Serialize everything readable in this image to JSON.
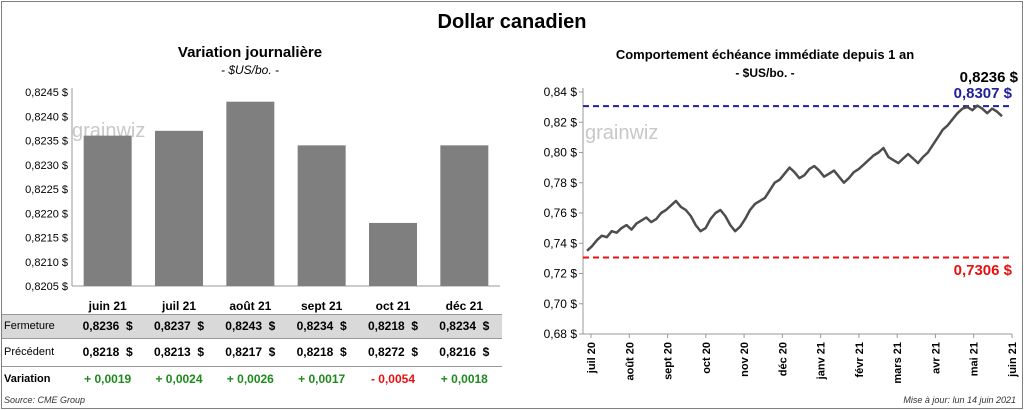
{
  "title": "Dollar canadien",
  "left_chart": {
    "title": "Variation  journalière",
    "subtitle": "- $US/bo. -",
    "watermark": "grainwiz"
  },
  "right_chart": {
    "title": "Comportement échéance immédiate depuis 1 an",
    "subtitle": "- $US/bo. -",
    "watermark": "grainwiz",
    "last_label": "0,8236 $",
    "high_label": "0,8307 $",
    "low_label": "0,7306 $"
  },
  "table": {
    "rows": [
      {
        "label": "Fermeture",
        "values": [
          "0,8236  $",
          "0,8237  $",
          "0,8243  $",
          "0,8234  $",
          "0,8218  $",
          "0,8234  $"
        ]
      },
      {
        "label": "Précédent",
        "values": [
          "0,8218  $",
          "0,8213  $",
          "0,8217  $",
          "0,8218  $",
          "0,8272  $",
          "0,8216  $"
        ]
      },
      {
        "label": "Variation",
        "values": [
          "+ 0,0019",
          "+ 0,0024",
          "+ 0,0026",
          "+ 0,0017",
          "- 0,0054",
          "+ 0,0018"
        ]
      }
    ]
  },
  "footer": {
    "source": "Source: CME Group",
    "updated": "Mise à jour: lun 14 juin 2021"
  },
  "colors": {
    "bar": "#7f7f7f",
    "line": "#4d4d4d",
    "high": "#1f1f9e",
    "low": "#e81010",
    "positive": "#1e8a1e",
    "negative": "#e81010"
  },
  "chart_data": [
    {
      "type": "bar",
      "categories": [
        "juin 21",
        "juil 21",
        "août 21",
        "sept 21",
        "oct 21",
        "déc 21"
      ],
      "values": [
        0.8236,
        0.8237,
        0.8243,
        0.8234,
        0.8218,
        0.8234
      ],
      "yticks": [
        "0,8205 $",
        "0,8210 $",
        "0,8215 $",
        "0,8220 $",
        "0,8225 $",
        "0,8230 $",
        "0,8235 $",
        "0,8240 $",
        "0,8245 $"
      ],
      "ylim": [
        0.8205,
        0.8245
      ]
    },
    {
      "type": "line",
      "xticks": [
        "juil 20",
        "août 20",
        "sept 20",
        "oct 20",
        "nov 20",
        "déc 20",
        "janv 21",
        "févr 21",
        "mars 21",
        "avr 21",
        "mai 21",
        "juin 21"
      ],
      "yticks": [
        "0,68 $",
        "0,70 $",
        "0,72 $",
        "0,74 $",
        "0,76 $",
        "0,78 $",
        "0,80 $",
        "0,82 $",
        "0,84 $"
      ],
      "ylim": [
        0.68,
        0.84
      ],
      "hline_high": 0.8307,
      "hline_low": 0.7306,
      "values": [
        0.735,
        0.738,
        0.742,
        0.745,
        0.744,
        0.748,
        0.747,
        0.75,
        0.752,
        0.749,
        0.753,
        0.755,
        0.757,
        0.754,
        0.756,
        0.76,
        0.762,
        0.765,
        0.768,
        0.764,
        0.762,
        0.758,
        0.752,
        0.748,
        0.75,
        0.756,
        0.76,
        0.762,
        0.758,
        0.752,
        0.748,
        0.751,
        0.756,
        0.762,
        0.766,
        0.768,
        0.77,
        0.775,
        0.78,
        0.782,
        0.786,
        0.79,
        0.787,
        0.783,
        0.785,
        0.789,
        0.791,
        0.788,
        0.784,
        0.786,
        0.788,
        0.784,
        0.78,
        0.783,
        0.787,
        0.789,
        0.792,
        0.795,
        0.798,
        0.8,
        0.803,
        0.797,
        0.795,
        0.793,
        0.796,
        0.799,
        0.796,
        0.793,
        0.797,
        0.8,
        0.805,
        0.81,
        0.815,
        0.818,
        0.822,
        0.826,
        0.829,
        0.83,
        0.828,
        0.831,
        0.829,
        0.826,
        0.829,
        0.827,
        0.824
      ]
    }
  ]
}
